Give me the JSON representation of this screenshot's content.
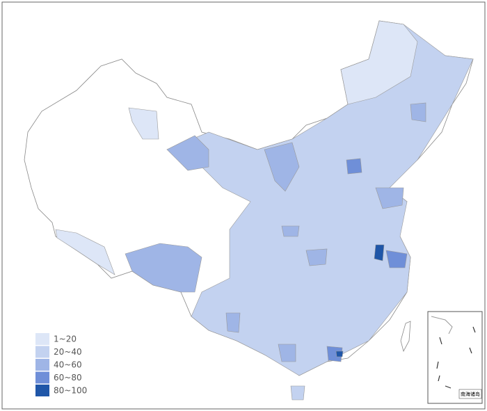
{
  "legend": {
    "items": [
      {
        "label": "1~20",
        "color": "#dde6f7"
      },
      {
        "label": "20~40",
        "color": "#c3d2f0"
      },
      {
        "label": "40~60",
        "color": "#9fb5e6"
      },
      {
        "label": "60~80",
        "color": "#6f8fd8"
      },
      {
        "label": "80~100",
        "color": "#1f56a8"
      }
    ]
  },
  "inset": {
    "label": "南海诸岛"
  }
}
